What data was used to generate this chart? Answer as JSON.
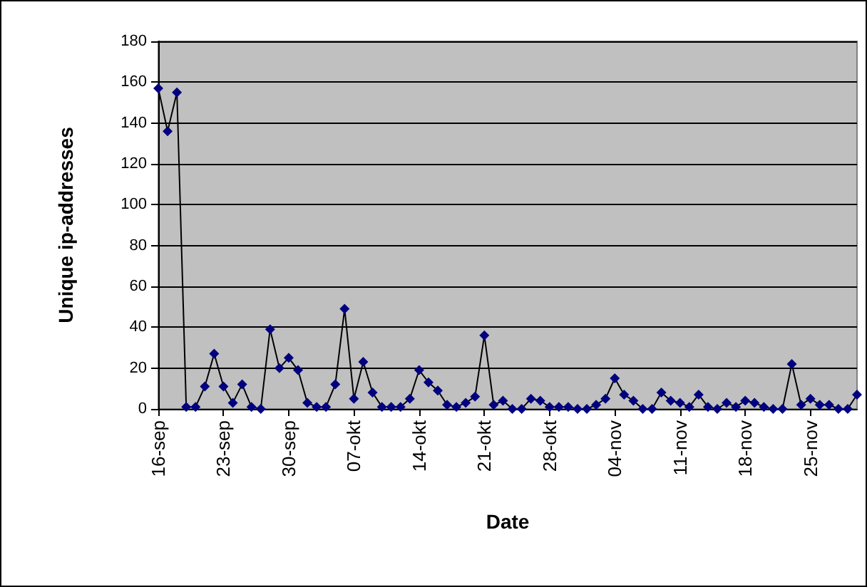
{
  "chart_data": {
    "type": "line",
    "xlabel": "Date",
    "ylabel": "Unique ip-addresses",
    "categories": [
      "16-sep",
      null,
      null,
      null,
      null,
      null,
      null,
      "23-sep",
      null,
      null,
      null,
      null,
      null,
      null,
      "30-sep",
      null,
      null,
      null,
      null,
      null,
      null,
      "07-okt",
      null,
      null,
      null,
      null,
      null,
      null,
      "14-okt",
      null,
      null,
      null,
      null,
      null,
      null,
      "21-okt",
      null,
      null,
      null,
      null,
      null,
      null,
      "28-okt",
      null,
      null,
      null,
      null,
      null,
      null,
      "04-nov",
      null,
      null,
      null,
      null,
      null,
      null,
      "11-nov",
      null,
      null,
      null,
      null,
      null,
      null,
      "18-nov",
      null,
      null,
      null,
      null,
      null,
      null,
      "25-nov",
      null,
      null,
      null,
      null,
      null
    ],
    "series": [
      {
        "color": "#000080",
        "values": [
          157,
          136,
          155,
          1,
          1,
          11,
          27,
          11,
          3,
          12,
          1,
          0,
          39,
          20,
          25,
          19,
          3,
          1,
          1,
          12,
          49,
          5,
          23,
          8,
          1,
          1,
          1,
          5,
          19,
          13,
          9,
          2,
          1,
          3,
          6,
          36,
          2,
          4,
          0,
          0,
          5,
          4,
          1,
          1,
          1,
          0,
          0,
          2,
          5,
          15,
          7,
          4,
          0,
          0,
          8,
          4,
          3,
          1,
          7,
          1,
          0,
          3,
          1,
          4,
          3,
          1,
          0,
          0,
          22,
          2,
          5,
          2,
          2,
          0,
          0,
          7
        ]
      }
    ],
    "ylim": [
      0,
      180
    ],
    "yticks": [
      0,
      20,
      40,
      60,
      80,
      100,
      120,
      140,
      160,
      180
    ],
    "grid": "y",
    "marker": "diamond",
    "line_style": "solid"
  }
}
